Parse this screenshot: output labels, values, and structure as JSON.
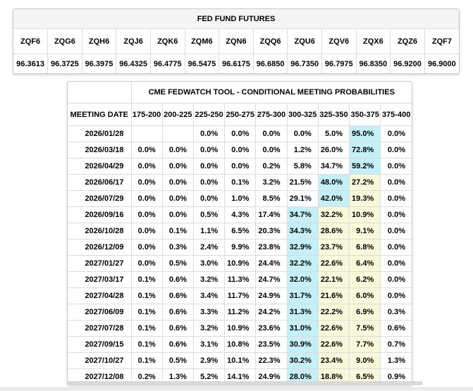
{
  "futures_table": {
    "title": "FED FUND FUTURES",
    "contracts": [
      "ZQF6",
      "ZQG6",
      "ZQH6",
      "ZQJ6",
      "ZQK6",
      "ZQM6",
      "ZQN6",
      "ZQQ6",
      "ZQU6",
      "ZQV6",
      "ZQX6",
      "ZQZ6",
      "ZQF7"
    ],
    "prices": [
      "96.3613",
      "96.3725",
      "96.3975",
      "96.4325",
      "96.4775",
      "96.5475",
      "96.6175",
      "96.6850",
      "96.7350",
      "96.7975",
      "96.8350",
      "96.9200",
      "96.9000"
    ]
  },
  "fedwatch_table": {
    "title": "CME FEDWATCH TOOL - CONDITIONAL MEETING PROBABILITIES",
    "date_header": "MEETING DATE",
    "range_headers": [
      "175-200",
      "200-225",
      "225-250",
      "250-275",
      "275-300",
      "300-325",
      "325-350",
      "350-375",
      "375-400"
    ],
    "highlight_colors": {
      "c": "#c6f0f8",
      "y": "#f8f8da"
    },
    "rows": [
      {
        "date": "2026/01/28",
        "values": [
          "",
          "",
          "0.0%",
          "0.0%",
          "0.0%",
          "0.0%",
          "5.0%",
          "95.0%",
          "0.0%"
        ],
        "highlights": [
          "",
          "",
          "",
          "",
          "",
          "",
          "",
          "c",
          ""
        ]
      },
      {
        "date": "2026/03/18",
        "values": [
          "0.0%",
          "0.0%",
          "0.0%",
          "0.0%",
          "0.0%",
          "1.2%",
          "26.0%",
          "72.8%",
          "0.0%"
        ],
        "highlights": [
          "",
          "",
          "",
          "",
          "",
          "",
          "",
          "c",
          ""
        ]
      },
      {
        "date": "2026/04/29",
        "values": [
          "0.0%",
          "0.0%",
          "0.0%",
          "0.0%",
          "0.2%",
          "5.8%",
          "34.7%",
          "59.2%",
          "0.0%"
        ],
        "highlights": [
          "",
          "",
          "",
          "",
          "",
          "",
          "",
          "c",
          ""
        ]
      },
      {
        "date": "2026/06/17",
        "values": [
          "0.0%",
          "0.0%",
          "0.0%",
          "0.1%",
          "3.2%",
          "21.5%",
          "48.0%",
          "27.2%",
          "0.0%"
        ],
        "highlights": [
          "",
          "",
          "",
          "",
          "",
          "",
          "c",
          "y",
          ""
        ]
      },
      {
        "date": "2026/07/29",
        "values": [
          "0.0%",
          "0.0%",
          "0.0%",
          "1.0%",
          "8.5%",
          "29.1%",
          "42.0%",
          "19.3%",
          "0.0%"
        ],
        "highlights": [
          "",
          "",
          "",
          "",
          "",
          "",
          "c",
          "y",
          ""
        ]
      },
      {
        "date": "2026/09/16",
        "values": [
          "0.0%",
          "0.0%",
          "0.5%",
          "4.3%",
          "17.4%",
          "34.7%",
          "32.2%",
          "10.9%",
          "0.0%"
        ],
        "highlights": [
          "",
          "",
          "",
          "",
          "",
          "c",
          "y",
          "y",
          ""
        ]
      },
      {
        "date": "2026/10/28",
        "values": [
          "0.0%",
          "0.1%",
          "1.1%",
          "6.5%",
          "20.3%",
          "34.3%",
          "28.6%",
          "9.1%",
          "0.0%"
        ],
        "highlights": [
          "",
          "",
          "",
          "",
          "",
          "c",
          "y",
          "y",
          ""
        ]
      },
      {
        "date": "2026/12/09",
        "values": [
          "0.0%",
          "0.3%",
          "2.4%",
          "9.9%",
          "23.8%",
          "32.9%",
          "23.7%",
          "6.8%",
          "0.0%"
        ],
        "highlights": [
          "",
          "",
          "",
          "",
          "",
          "c",
          "y",
          "y",
          ""
        ]
      },
      {
        "date": "2027/01/27",
        "values": [
          "0.0%",
          "0.5%",
          "3.0%",
          "10.9%",
          "24.4%",
          "32.2%",
          "22.6%",
          "6.4%",
          "0.0%"
        ],
        "highlights": [
          "",
          "",
          "",
          "",
          "",
          "c",
          "y",
          "y",
          ""
        ]
      },
      {
        "date": "2027/03/17",
        "values": [
          "0.1%",
          "0.6%",
          "3.2%",
          "11.3%",
          "24.7%",
          "32.0%",
          "22.1%",
          "6.2%",
          "0.0%"
        ],
        "highlights": [
          "",
          "",
          "",
          "",
          "",
          "c",
          "y",
          "y",
          ""
        ]
      },
      {
        "date": "2027/04/28",
        "values": [
          "0.1%",
          "0.6%",
          "3.4%",
          "11.7%",
          "24.9%",
          "31.7%",
          "21.6%",
          "6.0%",
          "0.0%"
        ],
        "highlights": [
          "",
          "",
          "",
          "",
          "",
          "c",
          "y",
          "y",
          ""
        ]
      },
      {
        "date": "2027/06/09",
        "values": [
          "0.1%",
          "0.6%",
          "3.3%",
          "11.2%",
          "24.2%",
          "31.3%",
          "22.2%",
          "6.9%",
          "0.3%"
        ],
        "highlights": [
          "",
          "",
          "",
          "",
          "",
          "c",
          "y",
          "y",
          ""
        ]
      },
      {
        "date": "2027/07/28",
        "values": [
          "0.1%",
          "0.6%",
          "3.2%",
          "10.9%",
          "23.6%",
          "31.0%",
          "22.6%",
          "7.5%",
          "0.6%"
        ],
        "highlights": [
          "",
          "",
          "",
          "",
          "",
          "c",
          "y",
          "y",
          ""
        ]
      },
      {
        "date": "2027/09/15",
        "values": [
          "0.1%",
          "0.6%",
          "3.1%",
          "10.8%",
          "23.5%",
          "30.9%",
          "22.6%",
          "7.7%",
          "0.7%"
        ],
        "highlights": [
          "",
          "",
          "",
          "",
          "",
          "c",
          "y",
          "y",
          ""
        ]
      },
      {
        "date": "2027/10/27",
        "values": [
          "0.1%",
          "0.5%",
          "2.9%",
          "10.1%",
          "22.3%",
          "30.2%",
          "23.4%",
          "9.0%",
          "1.3%"
        ],
        "highlights": [
          "",
          "",
          "",
          "",
          "",
          "c",
          "y",
          "y",
          ""
        ]
      },
      {
        "date": "2027/12/08",
        "values": [
          "0.2%",
          "1.3%",
          "5.2%",
          "14.1%",
          "24.9%",
          "28.0%",
          "18.8%",
          "6.5%",
          "0.9%"
        ],
        "highlights": [
          "",
          "",
          "",
          "",
          "",
          "c",
          "y",
          "y",
          ""
        ]
      }
    ]
  }
}
